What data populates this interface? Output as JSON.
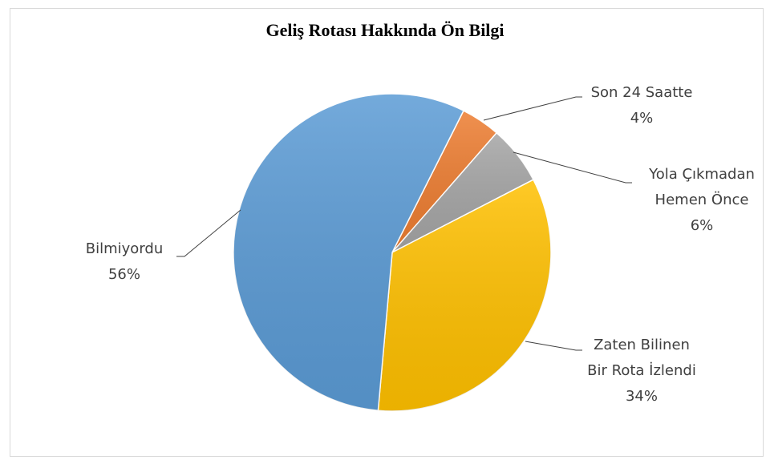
{
  "chart_data": {
    "type": "pie",
    "title": "Geliş Rotası Hakkında Ön Bilgi",
    "categories": [
      "Son 24 Saatte",
      "Yola Çıkmadan Hemen Önce",
      "Zaten Bilinen Bir Rota İzlendi",
      "Bilmiyordu"
    ],
    "values": [
      4,
      6,
      34,
      56
    ],
    "value_labels": [
      "4%",
      "6%",
      "34%",
      "56%"
    ],
    "colors": [
      "#ed7d31",
      "#a5a5a5",
      "#ffc000",
      "#5b9bd5"
    ]
  }
}
